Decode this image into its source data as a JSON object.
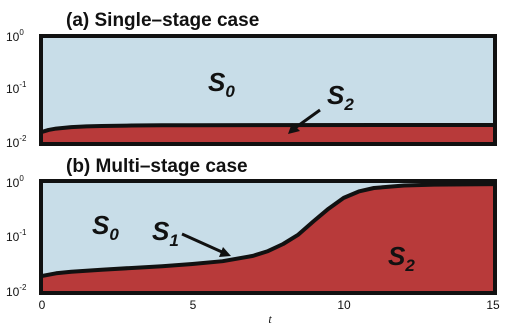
{
  "chart_data": [
    {
      "type": "area",
      "title": "(a) Single–stage case",
      "xlabel": "",
      "ylabel": "",
      "xlim": [
        0,
        15
      ],
      "ylim": [
        0.01,
        1
      ],
      "yscale": "log",
      "yticks": [
        {
          "base": "10",
          "exp": "-2"
        },
        {
          "base": "10",
          "exp": "-1"
        },
        {
          "base": "10",
          "exp": "0"
        }
      ],
      "grid": false,
      "colors": {
        "S0": "#c8dde8",
        "S2": "#b83a3a",
        "boundary": "#111111"
      },
      "x": [
        0,
        0.25,
        0.5,
        1,
        1.5,
        2,
        3,
        4,
        5,
        15
      ],
      "s2_upper_boundary": [
        0.0165,
        0.0182,
        0.0193,
        0.0205,
        0.0212,
        0.0216,
        0.022,
        0.0222,
        0.0223,
        0.0225
      ],
      "labels": [
        {
          "base": "S",
          "sub": "0"
        },
        {
          "base": "S",
          "sub": "2"
        }
      ]
    },
    {
      "type": "area",
      "title": "(b) Multi–stage case",
      "xlabel": "t",
      "ylabel": "",
      "xlim": [
        0,
        15
      ],
      "ylim": [
        0.01,
        1
      ],
      "yscale": "log",
      "xticks": [
        "0",
        "5",
        "10",
        "15"
      ],
      "yticks": [
        {
          "base": "10",
          "exp": "-2"
        },
        {
          "base": "10",
          "exp": "-1"
        },
        {
          "base": "10",
          "exp": "0"
        }
      ],
      "grid": false,
      "colors": {
        "S0": "#c8dde8",
        "S1": "#2f8fb8",
        "S2": "#b83a3a",
        "boundary": "#111111"
      },
      "x": [
        0,
        0.5,
        1,
        2,
        3,
        4,
        5,
        6,
        7,
        7.5,
        8,
        8.5,
        9,
        9.5,
        10,
        10.5,
        11,
        12,
        13,
        14,
        15
      ],
      "s2_upper_boundary": [
        0.02,
        0.0225,
        0.024,
        0.026,
        0.028,
        0.03,
        0.033,
        0.037,
        0.046,
        0.056,
        0.075,
        0.11,
        0.19,
        0.32,
        0.5,
        0.65,
        0.75,
        0.83,
        0.86,
        0.87,
        0.88
      ],
      "s1_upper_boundary": [
        0.0205,
        0.0232,
        0.0248,
        0.0269,
        0.029,
        0.0312,
        0.0345,
        0.0388,
        0.0482,
        0.0585,
        0.078,
        0.113,
        0.194,
        0.324,
        0.504,
        0.652,
        0.752,
        0.832,
        0.861,
        0.871,
        0.881
      ],
      "labels": [
        {
          "base": "S",
          "sub": "0"
        },
        {
          "base": "S",
          "sub": "1"
        },
        {
          "base": "S",
          "sub": "2"
        }
      ]
    }
  ]
}
